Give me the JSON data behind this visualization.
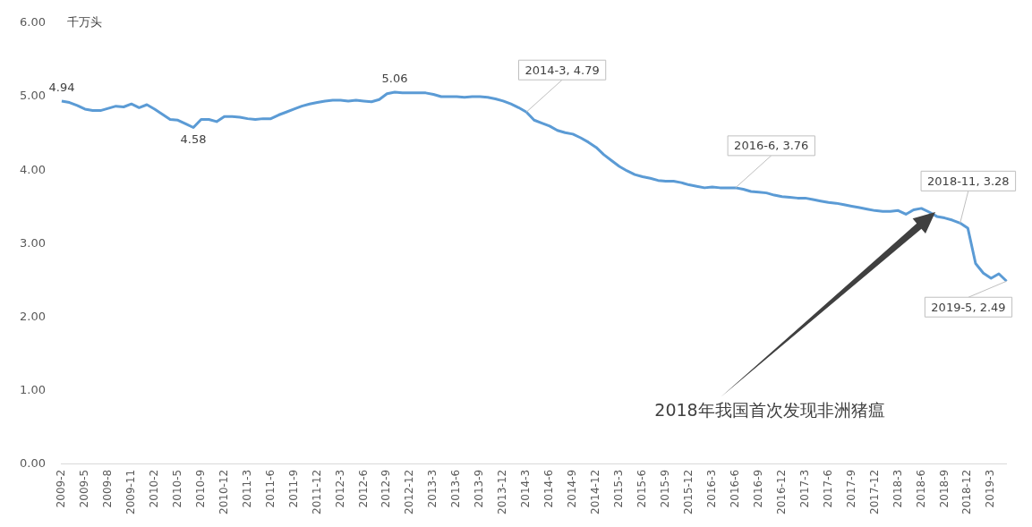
{
  "chart_data": {
    "type": "line",
    "ylabel": "千万头",
    "categories": [
      "2009-2",
      null,
      null,
      "2009-5",
      null,
      null,
      "2009-8",
      null,
      null,
      "2009-11",
      null,
      null,
      "2010-2",
      null,
      null,
      "2010-5",
      null,
      null,
      "2010-9",
      null,
      null,
      "2010-12",
      null,
      null,
      "2011-3",
      null,
      null,
      "2011-6",
      null,
      null,
      "2011-9",
      null,
      null,
      "2011-12",
      null,
      null,
      "2012-3",
      null,
      null,
      "2012-6",
      null,
      null,
      "2012-9",
      null,
      null,
      "2012-12",
      null,
      null,
      "2013-3",
      null,
      null,
      "2013-6",
      null,
      null,
      "2013-9",
      null,
      null,
      "2013-12",
      null,
      null,
      "2014-3",
      null,
      null,
      "2014-6",
      null,
      null,
      "2014-9",
      null,
      null,
      "2014-12",
      null,
      null,
      "2015-3",
      null,
      null,
      "2015-6",
      null,
      null,
      "2015-9",
      null,
      null,
      "2015-12",
      null,
      null,
      "2016-3",
      null,
      null,
      "2016-6",
      null,
      null,
      "2016-9",
      null,
      null,
      "2016-12",
      null,
      null,
      "2017-3",
      null,
      null,
      "2017-6",
      null,
      null,
      "2017-9",
      null,
      null,
      "2017-12",
      null,
      null,
      "2018-3",
      null,
      null,
      "2018-6",
      null,
      null,
      "2018-9",
      null,
      null,
      "2018-12",
      null,
      null,
      "2019-3",
      null,
      null
    ],
    "series": [
      {
        "color": "#5b9bd5",
        "values": [
          4.94,
          4.92,
          4.88,
          4.83,
          4.81,
          4.81,
          4.84,
          4.87,
          4.86,
          4.9,
          4.85,
          4.89,
          4.83,
          4.76,
          4.69,
          4.68,
          4.63,
          4.58,
          4.69,
          4.69,
          4.66,
          4.73,
          4.73,
          4.72,
          4.7,
          4.69,
          4.7,
          4.7,
          4.75,
          4.79,
          4.83,
          4.87,
          4.9,
          4.92,
          4.94,
          4.95,
          4.95,
          4.94,
          4.95,
          4.94,
          4.93,
          4.96,
          5.04,
          5.06,
          5.05,
          5.05,
          5.05,
          5.05,
          5.03,
          5.0,
          5.0,
          5.0,
          4.99,
          5.0,
          5.0,
          4.99,
          4.97,
          4.94,
          4.9,
          4.85,
          4.79,
          4.68,
          4.64,
          4.6,
          4.54,
          4.51,
          4.49,
          4.44,
          4.38,
          4.31,
          4.21,
          4.13,
          4.05,
          3.99,
          3.94,
          3.91,
          3.89,
          3.86,
          3.85,
          3.85,
          3.83,
          3.8,
          3.78,
          3.76,
          3.77,
          3.76,
          3.76,
          3.76,
          3.74,
          3.71,
          3.7,
          3.69,
          3.66,
          3.64,
          3.63,
          3.62,
          3.62,
          3.6,
          3.58,
          3.56,
          3.55,
          3.53,
          3.51,
          3.49,
          3.47,
          3.45,
          3.44,
          3.44,
          3.45,
          3.4,
          3.46,
          3.48,
          3.43,
          3.37,
          3.35,
          3.32,
          3.28,
          3.21,
          2.73,
          2.6,
          2.53,
          2.59,
          2.49
        ],
        "value_labels": [
          "4.94",
          null,
          null,
          null,
          null,
          null,
          null,
          null,
          null,
          null,
          null,
          null,
          null,
          null,
          null,
          null,
          null,
          "4.58",
          null,
          null,
          null,
          null,
          null,
          null,
          null,
          null,
          null,
          null,
          null,
          null,
          null,
          null,
          null,
          null,
          null,
          null,
          null,
          null,
          null,
          null,
          null,
          null,
          null,
          "5.06",
          null,
          null,
          null,
          null,
          null,
          null,
          null,
          null,
          null,
          null,
          null,
          null,
          null,
          null,
          null,
          null,
          "2014-3, 4.79",
          null,
          null,
          null,
          null,
          null,
          null,
          null,
          null,
          null,
          null,
          null,
          null,
          null,
          null,
          null,
          null,
          null,
          null,
          null,
          null,
          null,
          null,
          null,
          null,
          null,
          null,
          "2016-6, 3.76",
          null,
          null,
          null,
          null,
          null,
          null,
          null,
          null,
          null,
          null,
          null,
          null,
          null,
          null,
          null,
          null,
          null,
          null,
          null,
          null,
          null,
          null,
          null,
          null,
          null,
          null,
          null,
          null,
          "2018-11, 3.28",
          null,
          null,
          null,
          null,
          null,
          "2019-5, 2.49"
        ]
      }
    ],
    "ylim": [
      0,
      6
    ],
    "yticks": [
      {
        "value": 0,
        "label": "0.00"
      },
      {
        "value": 1,
        "label": "1.00"
      },
      {
        "value": 2,
        "label": "2.00"
      },
      {
        "value": 3,
        "label": "3.00"
      },
      {
        "value": 4,
        "label": "4.00"
      },
      {
        "value": 5,
        "label": "5.00"
      },
      {
        "value": 6,
        "label": "6.00"
      }
    ],
    "grid": false,
    "legend": false,
    "annotations": [
      "2018年我国首次发现非洲猪瘟"
    ]
  }
}
